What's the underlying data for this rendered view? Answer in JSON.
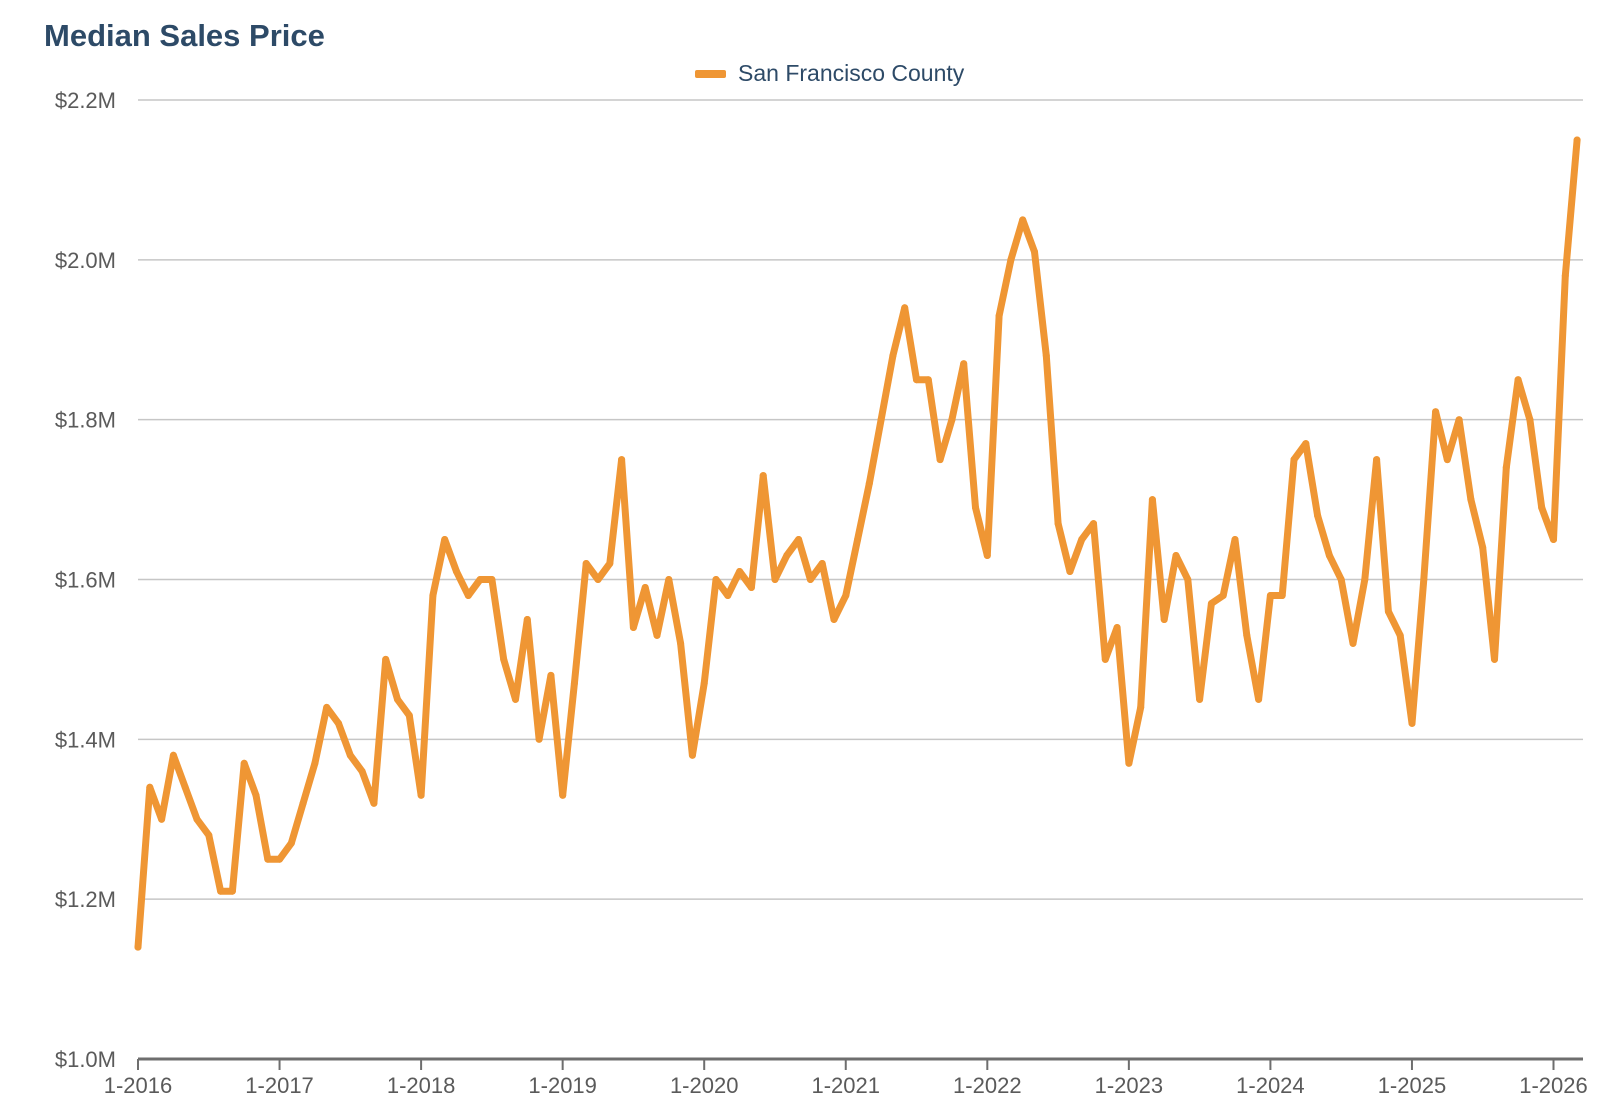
{
  "colors": {
    "series": "#ef9634",
    "title": "#2d4a67",
    "grid": "#c6c6c6",
    "axis": "#6e6e6e",
    "tick_text": "#5a5a5a"
  },
  "chart_data": {
    "type": "line",
    "title": "Median Sales Price",
    "xlabel": "",
    "ylabel": "",
    "legend_position": "top-center",
    "ylim": [
      1.0,
      2.2
    ],
    "y_ticks": [
      1.0,
      1.2,
      1.4,
      1.6,
      1.8,
      2.0,
      2.2
    ],
    "y_tick_labels": [
      "$1.0M",
      "$1.2M",
      "$1.4M",
      "$1.6M",
      "$1.8M",
      "$2.0M",
      "$2.2M"
    ],
    "y_unit": "millions USD",
    "x_ticks": [
      0,
      12,
      24,
      36,
      48,
      60,
      72,
      84,
      96,
      108,
      120,
      132
    ],
    "x_tick_labels": [
      "1-2016",
      "1-2017",
      "1-2018",
      "1-2019",
      "1-2020",
      "1-2021",
      "1-2022",
      "1-2023",
      "1-2024",
      "1-2025",
      "1-2026"
    ],
    "x_label_ticks": [
      0,
      12,
      24,
      36,
      48,
      60,
      72,
      84,
      96,
      108,
      120
    ],
    "xlim": [
      0,
      122.5
    ],
    "series": [
      {
        "name": "San Francisco County",
        "x_unit": "months since 1-2016",
        "values": [
          1.14,
          1.34,
          1.3,
          1.38,
          1.34,
          1.3,
          1.28,
          1.21,
          1.21,
          1.37,
          1.33,
          1.25,
          1.25,
          1.27,
          1.32,
          1.37,
          1.44,
          1.42,
          1.38,
          1.36,
          1.32,
          1.5,
          1.45,
          1.43,
          1.33,
          1.58,
          1.65,
          1.61,
          1.58,
          1.6,
          1.6,
          1.5,
          1.45,
          1.55,
          1.4,
          1.48,
          1.33,
          1.47,
          1.62,
          1.6,
          1.62,
          1.75,
          1.54,
          1.59,
          1.53,
          1.6,
          1.52,
          1.38,
          1.47,
          1.6,
          1.58,
          1.61,
          1.59,
          1.73,
          1.6,
          1.63,
          1.65,
          1.6,
          1.62,
          1.55,
          1.58,
          1.65,
          1.72,
          1.8,
          1.88,
          1.94,
          1.85,
          1.85,
          1.75,
          1.8,
          1.87,
          1.69,
          1.63,
          1.93,
          2.0,
          2.05,
          2.01,
          1.88,
          1.67,
          1.61,
          1.65,
          1.67,
          1.5,
          1.54,
          1.37,
          1.44,
          1.7,
          1.55,
          1.63,
          1.6,
          1.45,
          1.57,
          1.58,
          1.65,
          1.53,
          1.45,
          1.58,
          1.58,
          1.75,
          1.77,
          1.68,
          1.63,
          1.6,
          1.52,
          1.6,
          1.75,
          1.56,
          1.53,
          1.42,
          1.6,
          1.81,
          1.75,
          1.8,
          1.7,
          1.64,
          1.5,
          1.74,
          1.85,
          1.8,
          1.69,
          1.65,
          1.98,
          2.15
        ]
      }
    ]
  }
}
